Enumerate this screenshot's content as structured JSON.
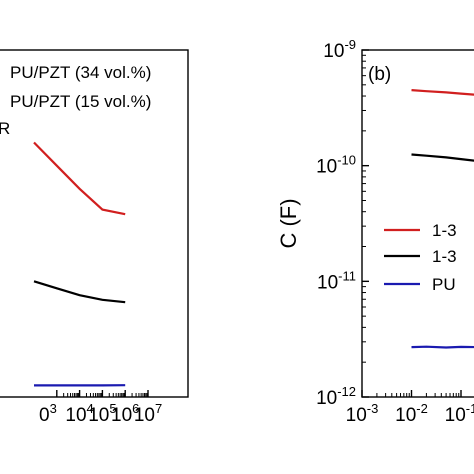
{
  "chart_data": [
    {
      "type": "line",
      "panel_label": "",
      "xscale": "log",
      "xlim": [
        0.001,
        10000000
      ],
      "x_ticks": [
        {
          "mant": "0",
          "exp": "3"
        },
        {
          "mant": "10",
          "exp": "4"
        },
        {
          "mant": "10",
          "exp": "5"
        },
        {
          "mant": "10",
          "exp": "6"
        },
        {
          "mant": "10",
          "exp": "7"
        }
      ],
      "legend": {
        "position": "top-left",
        "entries": [
          "PU/PZT (34 vol.%)",
          "PU/PZT (15 vol.%)",
          "R"
        ]
      },
      "series": [
        {
          "name": "PU/PZT (34 vol.%)",
          "color": "#d11f1f",
          "x": [
            100,
            1000,
            10000,
            100000,
            1000000
          ],
          "y": [
            1.1,
            1.0,
            0.9,
            0.81,
            0.79
          ]
        },
        {
          "name": "PU/PZT (15 vol.%)",
          "color": "#000000",
          "x": [
            100,
            1000,
            10000,
            100000,
            1000000
          ],
          "y": [
            0.5,
            0.47,
            0.44,
            0.42,
            0.41
          ]
        },
        {
          "name": "R",
          "color": "#1a1ab0",
          "x": [
            100,
            1000,
            10000,
            100000,
            1000000
          ],
          "y": [
            0.05,
            0.05,
            0.05,
            0.05,
            0.051
          ]
        }
      ]
    },
    {
      "type": "line",
      "panel_label": "(b)",
      "ylabel": "C (F)",
      "xscale": "log",
      "yscale": "log",
      "xlim": [
        0.001,
        10
      ],
      "ylim": [
        1e-12,
        1e-09
      ],
      "x_ticks": [
        {
          "mant": "10",
          "exp": "-3"
        },
        {
          "mant": "10",
          "exp": "-2"
        },
        {
          "mant": "10",
          "exp": "-1"
        }
      ],
      "y_ticks": [
        {
          "mant": "10",
          "exp": "-9"
        },
        {
          "mant": "10",
          "exp": "-10"
        },
        {
          "mant": "10",
          "exp": "-11"
        },
        {
          "mant": "10",
          "exp": "-12"
        }
      ],
      "legend": {
        "position": "center-right",
        "entries": [
          "1-3",
          "1-3",
          "PU"
        ]
      },
      "series": [
        {
          "name": "1-3",
          "color": "#d11f1f",
          "x": [
            0.01,
            0.02,
            0.05,
            0.1,
            0.2,
            0.3
          ],
          "y": [
            4.5e-10,
            4.4e-10,
            4.3e-10,
            4.2e-10,
            4.1e-10,
            4e-10
          ]
        },
        {
          "name": "1-3",
          "color": "#000000",
          "x": [
            0.01,
            0.02,
            0.05,
            0.1,
            0.2,
            0.3
          ],
          "y": [
            1.25e-10,
            1.22e-10,
            1.18e-10,
            1.14e-10,
            1.1e-10,
            1.06e-10
          ]
        },
        {
          "name": "PU",
          "color": "#1a1ab0",
          "x": [
            0.01,
            0.02,
            0.05,
            0.1,
            0.2,
            0.3
          ],
          "y": [
            2.7e-12,
            2.72e-12,
            2.68e-12,
            2.71e-12,
            2.7e-12,
            2.72e-12
          ]
        }
      ]
    }
  ]
}
